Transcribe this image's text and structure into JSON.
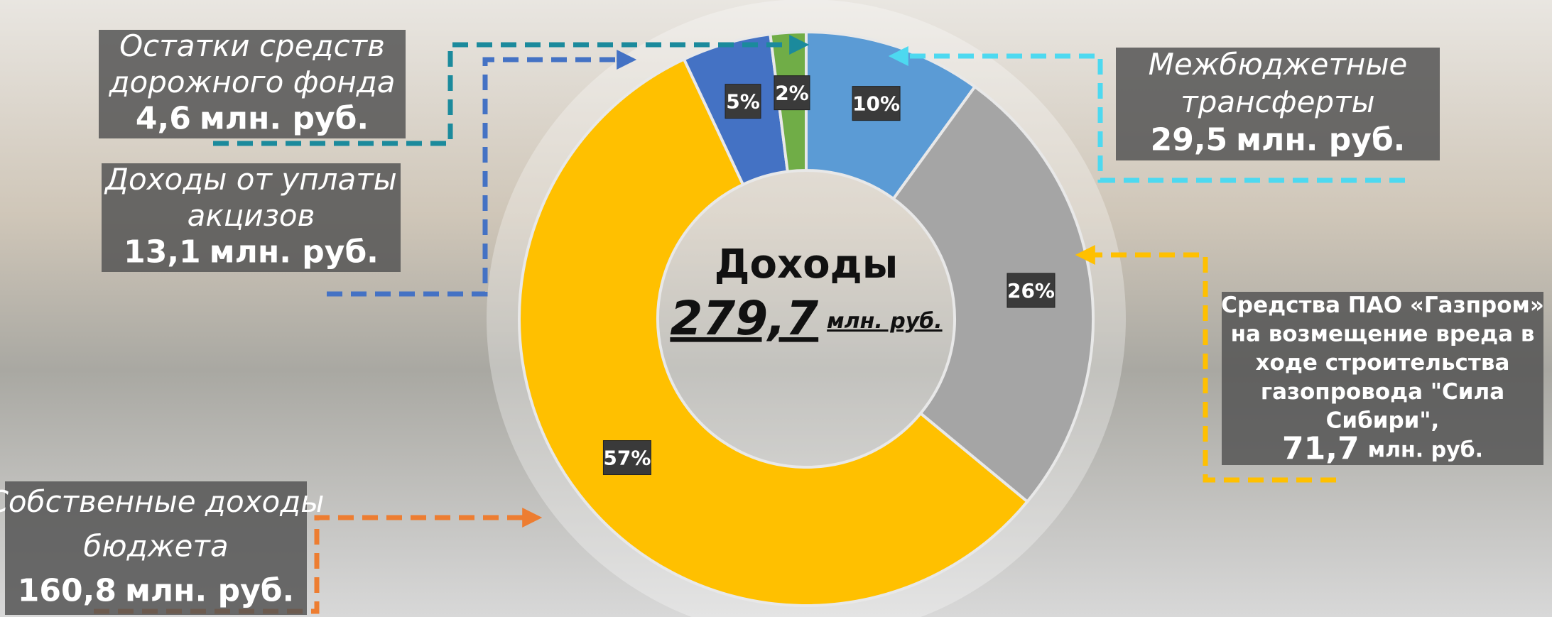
{
  "chart_data": {
    "type": "pie",
    "categories": [
      "Межбюджетные трансферты",
      "Средства ПАО «Газпром»",
      "Собственные доходы бюджета",
      "Доходы от уплаты акцизов",
      "Остатки средств дорожного фонда"
    ],
    "values": [
      10,
      26,
      57,
      5,
      2
    ],
    "value_labels": [
      "10%",
      "26%",
      "57%",
      "5%",
      "2%"
    ],
    "colors": [
      "#5b9bd5",
      "#a5a5a5",
      "#ffc000",
      "#4472c4",
      "#70ad47"
    ],
    "center": {
      "title": "Доходы",
      "amount": "279,7",
      "unit": "млн. руб."
    },
    "callouts": [
      {
        "lines": [
          "Межбюджетные",
          "трансферты"
        ],
        "amount": "29,5",
        "unit": "млн. руб."
      },
      {
        "lines": [
          "Средства ПАО «Газпром»",
          "на возмещение вреда в",
          "ходе строительства",
          "газопровода \"Сила",
          "Сибири\","
        ],
        "amount": "71,7",
        "unit": "млн. руб."
      },
      {
        "lines": [
          "Собственные доходы",
          "бюджета"
        ],
        "amount": "160,8",
        "unit": "млн. руб."
      },
      {
        "lines": [
          "Доходы от уплаты",
          "акцизов"
        ],
        "amount": "13,1",
        "unit": "млн. руб."
      },
      {
        "lines": [
          "Остатки средств",
          "дорожного фонда"
        ],
        "amount": "4,6",
        "unit": "млн. руб."
      }
    ]
  }
}
